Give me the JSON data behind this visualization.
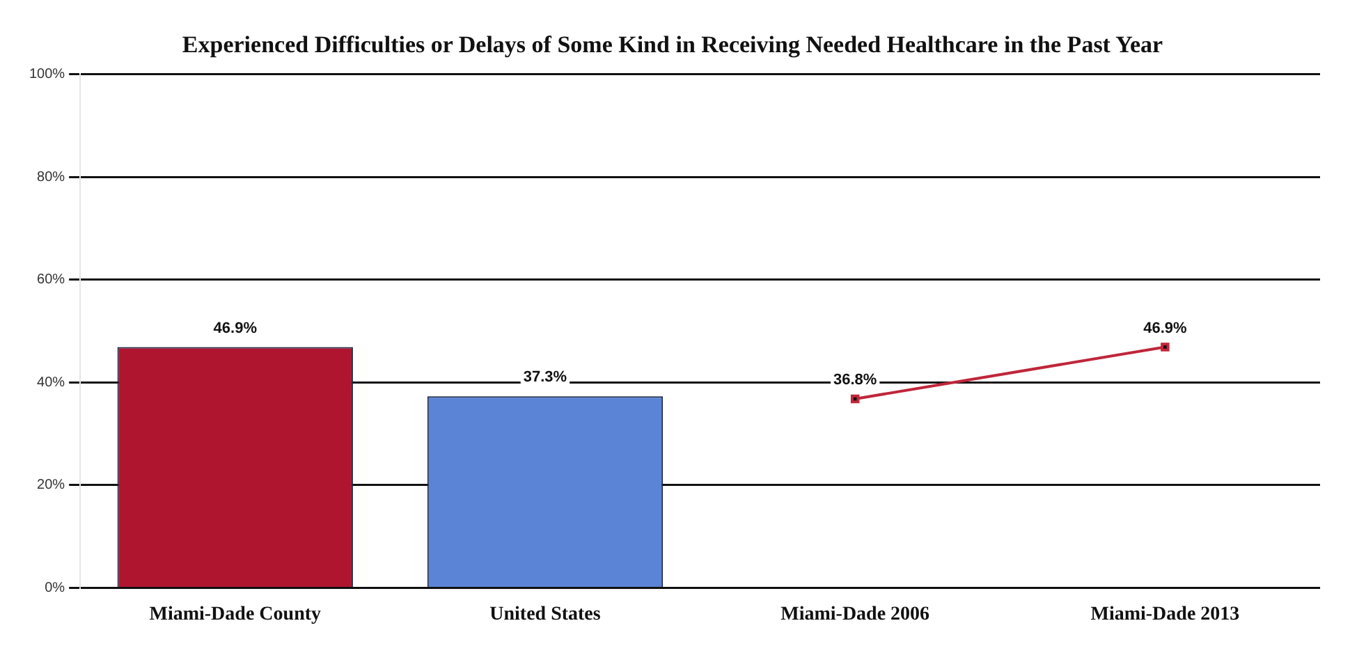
{
  "chart_data": {
    "type": "bar",
    "title": "Experienced Difficulties or Delays of Some Kind in Receiving Needed Healthcare in the Past Year",
    "categories": [
      "Miami-Dade County",
      "United States",
      "Miami-Dade 2006",
      "Miami-Dade 2013"
    ],
    "series": [
      {
        "colors": [
          "#b0152f",
          "#5b84d6",
          null,
          null
        ],
        "values": [
          46.9,
          37.3,
          null,
          null
        ],
        "value_labels": [
          "46.9%",
          "37.3%",
          null,
          null
        ]
      },
      {
        "type": "line",
        "color": "#c0263a",
        "values": [
          null,
          null,
          36.8,
          46.9
        ],
        "value_labels": [
          null,
          null,
          "36.8%",
          "46.9%"
        ],
        "marker": "square"
      }
    ],
    "ylim": [
      0,
      100
    ],
    "yticks": [
      {
        "value": 0,
        "label": "0%"
      },
      {
        "value": 20,
        "label": "20%"
      },
      {
        "value": 40,
        "label": "40%"
      },
      {
        "value": 60,
        "label": "60%"
      },
      {
        "value": 80,
        "label": "80%"
      },
      {
        "value": 100,
        "label": "100%"
      }
    ],
    "grid": "y",
    "legend": false
  }
}
